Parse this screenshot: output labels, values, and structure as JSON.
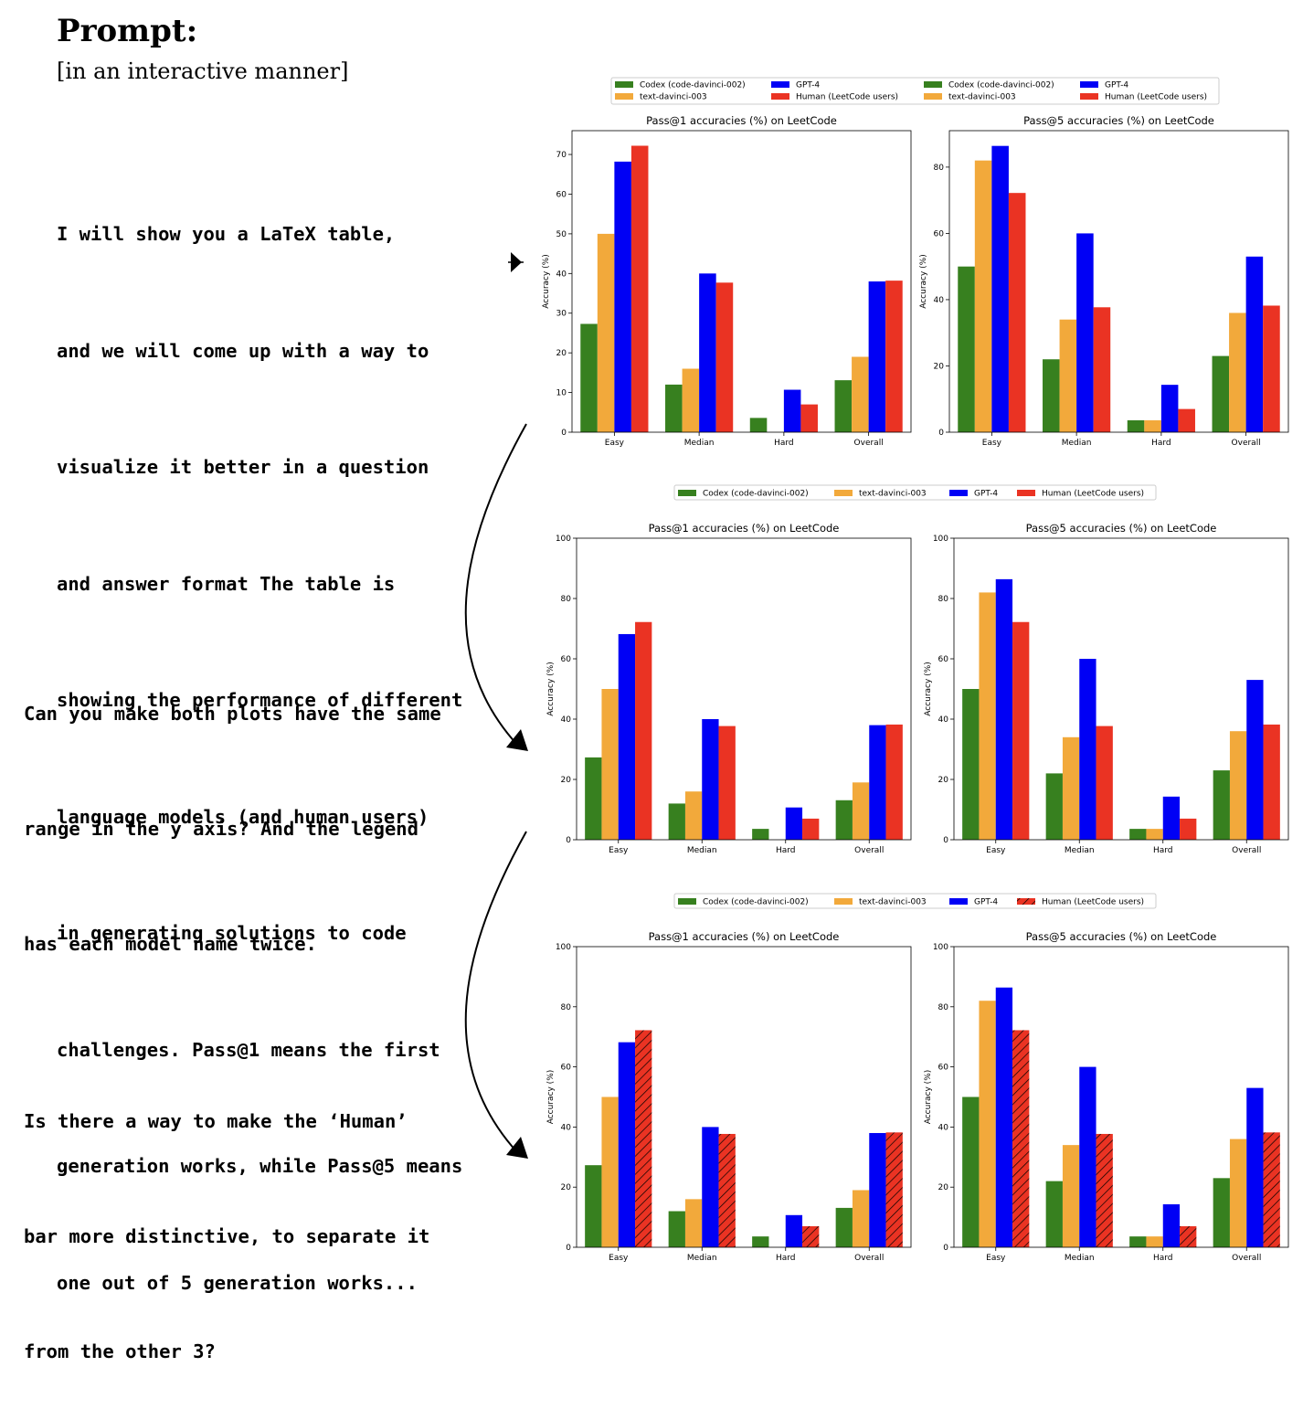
{
  "header": {
    "title": "Prompt:",
    "subtitle": "[in an interactive manner]"
  },
  "prompts": [
    {
      "lines": [
        "I will show you a LaTeX table,",
        "and we will come up with a way to",
        "visualize it better in a question",
        "and answer format The table is",
        "showing the performance of different",
        "language models (and human users)",
        "in generating solutions to code",
        "challenges. Pass@1 means the first",
        "generation works, while Pass@5 means",
        "one out of 5 generation works..."
      ]
    },
    {
      "lines": [
        "Can you make both plots have the same",
        "range in the y axis? And the legend",
        "has each model name twice."
      ]
    },
    {
      "lines": [
        "Is there a way to make the ‘Human’",
        "bar more distinctive, to separate it",
        "from the other 3?"
      ]
    }
  ],
  "colors": {
    "codex": "#37801f",
    "text_davinci": "#f2a93b",
    "gpt4": "#0000f5",
    "human": "#ea3323"
  },
  "chart_data": [
    {
      "type": "bar",
      "title": "Pass@1 accuracies (%) on LeetCode",
      "ylabel": "Accuracy (%)",
      "categories": [
        "Easy",
        "Median",
        "Hard",
        "Overall"
      ],
      "ylim": [
        0,
        76
      ],
      "yticks": [
        0,
        10,
        20,
        30,
        40,
        50,
        60,
        70
      ],
      "series": [
        {
          "name": "Codex (code-davinci-002)",
          "values": [
            27.3,
            12.0,
            3.6,
            13.1
          ]
        },
        {
          "name": "text-davinci-003",
          "values": [
            50.0,
            16.0,
            0.0,
            19.0
          ]
        },
        {
          "name": "GPT-4",
          "values": [
            68.2,
            40.0,
            10.7,
            38.0
          ]
        },
        {
          "name": "Human (LeetCode users)",
          "values": [
            72.2,
            37.7,
            7.0,
            38.2
          ]
        }
      ]
    },
    {
      "type": "bar",
      "title": "Pass@5 accuracies (%) on LeetCode",
      "ylabel": "Accuracy (%)",
      "categories": [
        "Easy",
        "Median",
        "Hard",
        "Overall"
      ],
      "ylim": [
        0,
        91
      ],
      "yticks": [
        0,
        20,
        40,
        60,
        80
      ],
      "series": [
        {
          "name": "Codex (code-davinci-002)",
          "values": [
            50.0,
            22.0,
            3.6,
            23.0
          ]
        },
        {
          "name": "text-davinci-003",
          "values": [
            82.0,
            34.0,
            3.6,
            36.0
          ]
        },
        {
          "name": "GPT-4",
          "values": [
            86.4,
            60.0,
            14.3,
            53.0
          ]
        },
        {
          "name": "Human (LeetCode users)",
          "values": [
            72.2,
            37.7,
            7.0,
            38.2
          ]
        }
      ]
    },
    {
      "type": "bar",
      "title": "Pass@1 accuracies (%) on LeetCode",
      "ylabel": "Accuracy (%)",
      "categories": [
        "Easy",
        "Median",
        "Hard",
        "Overall"
      ],
      "ylim": [
        0,
        100
      ],
      "yticks": [
        0,
        20,
        40,
        60,
        80,
        100
      ],
      "series": [
        {
          "name": "Codex (code-davinci-002)",
          "values": [
            27.3,
            12.0,
            3.6,
            13.1
          ]
        },
        {
          "name": "text-davinci-003",
          "values": [
            50.0,
            16.0,
            0.0,
            19.0
          ]
        },
        {
          "name": "GPT-4",
          "values": [
            68.2,
            40.0,
            10.7,
            38.0
          ]
        },
        {
          "name": "Human (LeetCode users)",
          "values": [
            72.2,
            37.7,
            7.0,
            38.2
          ]
        }
      ]
    },
    {
      "type": "bar",
      "title": "Pass@5 accuracies (%) on LeetCode",
      "ylabel": "Accuracy (%)",
      "categories": [
        "Easy",
        "Median",
        "Hard",
        "Overall"
      ],
      "ylim": [
        0,
        100
      ],
      "yticks": [
        0,
        20,
        40,
        60,
        80,
        100
      ],
      "series": [
        {
          "name": "Codex (code-davinci-002)",
          "values": [
            50.0,
            22.0,
            3.6,
            23.0
          ]
        },
        {
          "name": "text-davinci-003",
          "values": [
            82.0,
            34.0,
            3.6,
            36.0
          ]
        },
        {
          "name": "GPT-4",
          "values": [
            86.4,
            60.0,
            14.3,
            53.0
          ]
        },
        {
          "name": "Human (LeetCode users)",
          "values": [
            72.2,
            37.7,
            7.0,
            38.2
          ]
        }
      ]
    },
    {
      "type": "bar",
      "title": "Pass@1 accuracies (%) on LeetCode",
      "ylabel": "Accuracy (%)",
      "categories": [
        "Easy",
        "Median",
        "Hard",
        "Overall"
      ],
      "ylim": [
        0,
        100
      ],
      "yticks": [
        0,
        20,
        40,
        60,
        80,
        100
      ],
      "hatch_series": "Human (LeetCode users)",
      "series": [
        {
          "name": "Codex (code-davinci-002)",
          "values": [
            27.3,
            12.0,
            3.6,
            13.1
          ]
        },
        {
          "name": "text-davinci-003",
          "values": [
            50.0,
            16.0,
            0.0,
            19.0
          ]
        },
        {
          "name": "GPT-4",
          "values": [
            68.2,
            40.0,
            10.7,
            38.0
          ]
        },
        {
          "name": "Human (LeetCode users)",
          "values": [
            72.2,
            37.7,
            7.0,
            38.2
          ]
        }
      ]
    },
    {
      "type": "bar",
      "title": "Pass@5 accuracies (%) on LeetCode",
      "ylabel": "Accuracy (%)",
      "categories": [
        "Easy",
        "Median",
        "Hard",
        "Overall"
      ],
      "ylim": [
        0,
        100
      ],
      "yticks": [
        0,
        20,
        40,
        60,
        80,
        100
      ],
      "hatch_series": "Human (LeetCode users)",
      "series": [
        {
          "name": "Codex (code-davinci-002)",
          "values": [
            50.0,
            22.0,
            3.6,
            23.0
          ]
        },
        {
          "name": "text-davinci-003",
          "values": [
            82.0,
            34.0,
            3.6,
            36.0
          ]
        },
        {
          "name": "GPT-4",
          "values": [
            86.4,
            60.0,
            14.3,
            53.0
          ]
        },
        {
          "name": "Human (LeetCode users)",
          "values": [
            72.2,
            37.7,
            7.0,
            38.2
          ]
        }
      ]
    }
  ],
  "legends": [
    {
      "placement": "top-center",
      "duplicated": true,
      "entries": [
        "Codex (code-davinci-002)",
        "GPT-4",
        "Codex (code-davinci-002)",
        "GPT-4",
        "text-davinci-003",
        "Human (LeetCode users)",
        "text-davinci-003",
        "Human (LeetCode users)"
      ]
    },
    {
      "placement": "top-center",
      "entries": [
        "Codex (code-davinci-002)",
        "text-davinci-003",
        "GPT-4",
        "Human (LeetCode users)"
      ]
    },
    {
      "placement": "top-center",
      "hatched_entry": "Human (LeetCode users)",
      "entries": [
        "Codex (code-davinci-002)",
        "text-davinci-003",
        "GPT-4",
        "Human (LeetCode users)"
      ]
    }
  ]
}
